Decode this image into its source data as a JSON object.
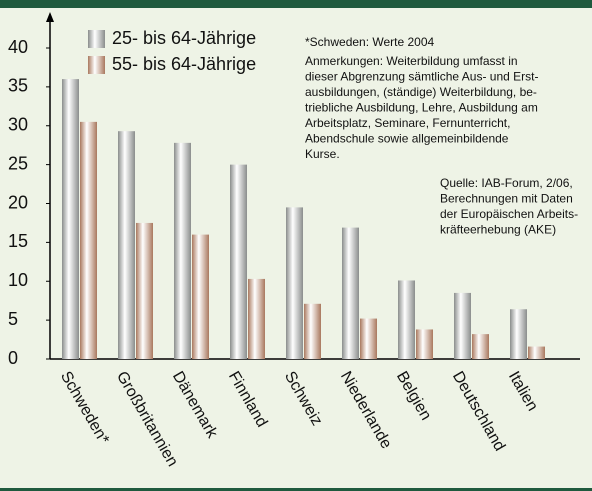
{
  "chart_data": {
    "type": "bar",
    "categories": [
      "Schweden*",
      "Großbritannien",
      "Dänemark",
      "Finnland",
      "Schweiz",
      "Niederlande",
      "Belgien",
      "Deutschland",
      "Italien"
    ],
    "series": [
      {
        "name": "25- bis 64-Jährige",
        "color": "#8a8d8c",
        "values": [
          36,
          29.3,
          27.8,
          25,
          19.5,
          16.9,
          10.1,
          8.5,
          6.4
        ]
      },
      {
        "name": "55- bis 64-Jährige",
        "color": "#a9785e",
        "values": [
          30.5,
          17.5,
          16,
          10.3,
          7.1,
          5.2,
          3.8,
          3.2,
          1.6
        ]
      }
    ],
    "ylim": [
      0,
      40
    ],
    "yticks": [
      0,
      5,
      10,
      15,
      20,
      25,
      30,
      35,
      40
    ],
    "annotations": [
      [
        "*Schweden: Werte 2004"
      ],
      [
        "Anmerkungen: Weiterbildung umfasst in",
        "dieser Abgrenzung sämtliche Aus- und Erst-",
        "ausbildungen, (ständige) Weiterbildung, be-",
        "triebliche Ausbildung, Lehre, Ausbildung am",
        "Arbeitsplatz, Seminare, Fernunterricht,",
        "Abendschule sowie allgemeinbildende",
        "Kurse."
      ],
      [
        "Quelle: IAB-Forum, 2/06,",
        "Berechnungen mit Daten",
        "der Europäischen Arbeits-",
        "kräfteerhebung (AKE)"
      ]
    ]
  }
}
